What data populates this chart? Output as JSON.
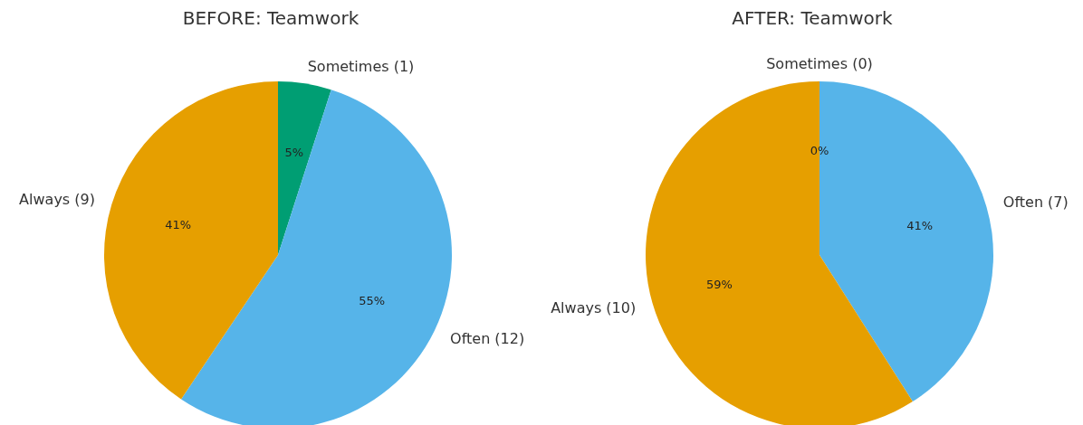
{
  "chart_data": [
    {
      "type": "pie",
      "title": "BEFORE: Teamwork",
      "categories": [
        "Sometimes (1)",
        "Often (12)",
        "Always (9)"
      ],
      "values": [
        5,
        55,
        41
      ],
      "colors": [
        "#009e73",
        "#56b4e9",
        "#e69f00"
      ],
      "value_labels": [
        "5%",
        "55%",
        "41%"
      ]
    },
    {
      "type": "pie",
      "title": "AFTER: Teamwork",
      "categories": [
        "Sometimes (0)",
        "Often (7)",
        "Always (10)"
      ],
      "values": [
        0,
        41,
        59
      ],
      "colors": [
        "#009e73",
        "#56b4e9",
        "#e69f00"
      ],
      "value_labels": [
        "0%",
        "41%",
        "59%"
      ]
    }
  ]
}
